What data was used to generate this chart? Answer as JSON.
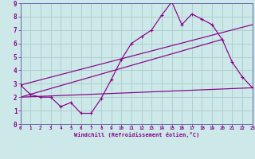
{
  "xlabel": "Windchill (Refroidissement éolien,°C)",
  "bg_color": "#cce8e8",
  "grid_color": "#aacccc",
  "line_color": "#880088",
  "spine_color": "#6666aa",
  "xmin": 0,
  "xmax": 23,
  "ymin": 0,
  "ymax": 9,
  "line1_x": [
    0,
    1,
    2,
    3,
    4,
    5,
    6,
    7,
    8,
    9,
    10,
    11,
    12,
    13,
    14,
    15,
    16,
    17,
    18,
    19,
    20,
    21,
    22,
    23
  ],
  "line1_y": [
    2.9,
    2.2,
    2.0,
    2.0,
    1.3,
    1.6,
    0.8,
    0.8,
    1.9,
    3.3,
    4.8,
    6.0,
    6.5,
    7.0,
    8.1,
    9.1,
    7.4,
    8.2,
    7.8,
    7.4,
    6.3,
    4.6,
    3.5,
    2.7
  ],
  "line2_x": [
    0,
    23
  ],
  "line2_y": [
    2.9,
    7.4
  ],
  "line3_x": [
    0,
    20
  ],
  "line3_y": [
    2.0,
    6.3
  ],
  "line4_x": [
    0,
    23
  ],
  "line4_y": [
    2.0,
    2.7
  ]
}
